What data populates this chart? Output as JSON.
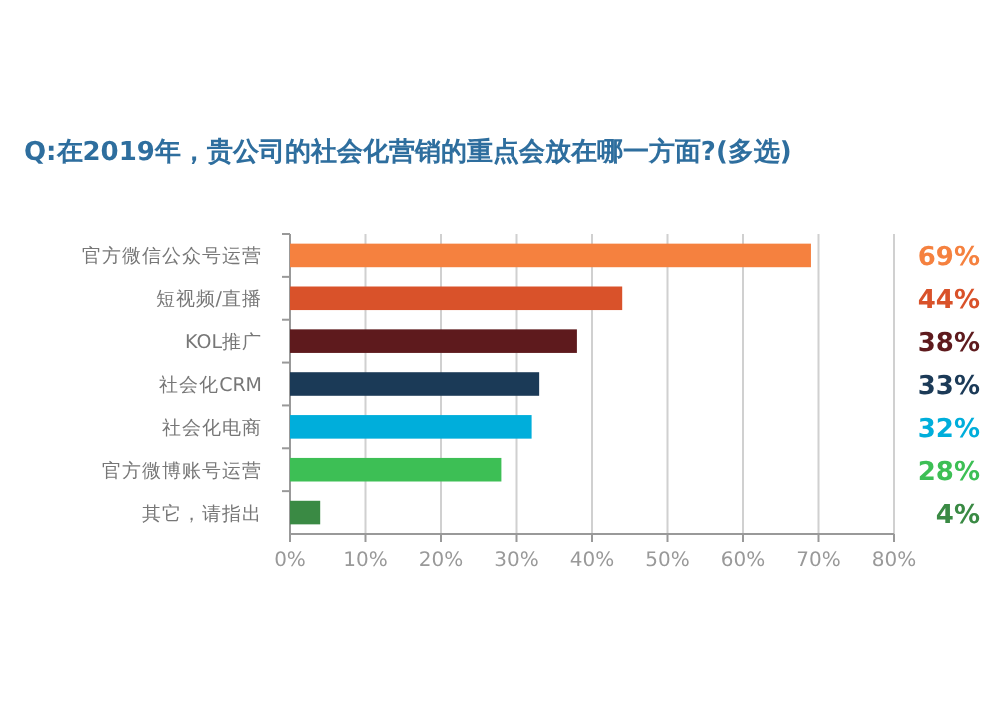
{
  "chart_data": {
    "type": "bar",
    "orientation": "horizontal",
    "title": "Q:在2019年，贵公司的社会化营销的重点会放在哪一方面?(多选)",
    "categories": [
      "官方微信公众号运营",
      "短视频/直播",
      "KOL推广",
      "社会化CRM",
      "社会化电商",
      "官方微博账号运营",
      "其它，请指出"
    ],
    "values": [
      69,
      44,
      38,
      33,
      32,
      28,
      4
    ],
    "value_labels": [
      "69%",
      "44%",
      "38%",
      "33%",
      "32%",
      "28%",
      "4%"
    ],
    "colors": [
      "#f5813f",
      "#d9522a",
      "#5e1a1d",
      "#1b3a57",
      "#00aedb",
      "#3dbf55",
      "#3a8a44"
    ],
    "xlim": [
      0,
      80
    ],
    "xticks": [
      {
        "value": 0,
        "label": "0%"
      },
      {
        "value": 10,
        "label": "10%"
      },
      {
        "value": 20,
        "label": "20%"
      },
      {
        "value": 30,
        "label": "30%"
      },
      {
        "value": 40,
        "label": "40%"
      },
      {
        "value": 50,
        "label": "50%"
      },
      {
        "value": 60,
        "label": "60%"
      },
      {
        "value": 70,
        "label": "70%"
      },
      {
        "value": 80,
        "label": "80%"
      }
    ],
    "grid": "x"
  }
}
